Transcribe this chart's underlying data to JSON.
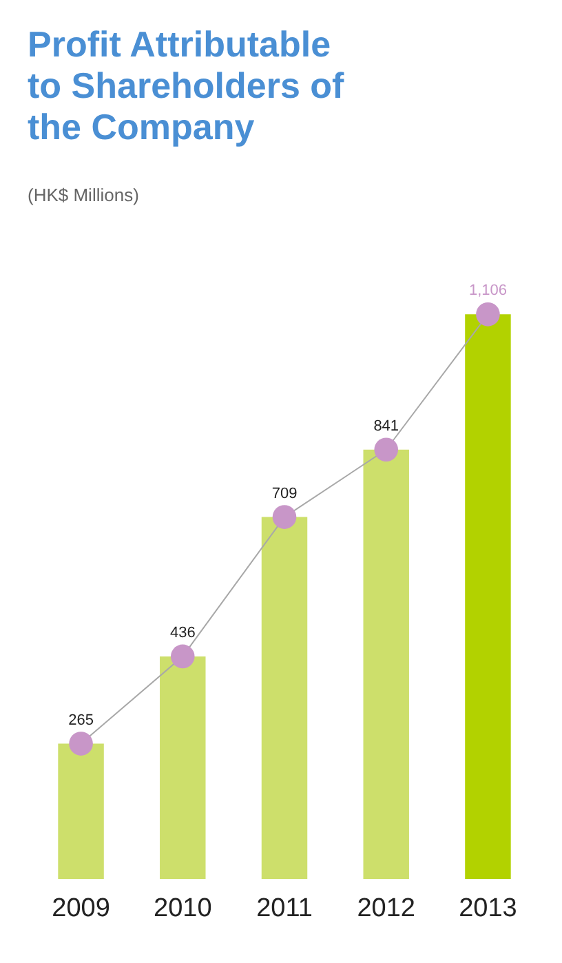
{
  "chart_data": {
    "type": "bar",
    "title": "Profit Attributable to Shareholders of the Company",
    "subtitle": "(HK$ Millions)",
    "categories": [
      "2009",
      "2010",
      "2011",
      "2012",
      "2013"
    ],
    "series": [
      {
        "colors": [
          "#cddf6b",
          "#cddf6b",
          "#cddf6b",
          "#cddf6b",
          "#b2d200"
        ],
        "values": [
          265,
          436,
          709,
          841,
          1106
        ]
      },
      {
        "type": "line",
        "color": "#a8a8a8",
        "values": [
          265,
          436,
          709,
          841,
          1106
        ]
      },
      {
        "type": "scatter",
        "color": "#c896c8",
        "marker": "circle",
        "values": [
          265,
          436,
          709,
          841,
          1106
        ],
        "value_labels": [
          "265",
          "436",
          "709",
          "841",
          "1,106"
        ]
      }
    ],
    "grid": false
  }
}
